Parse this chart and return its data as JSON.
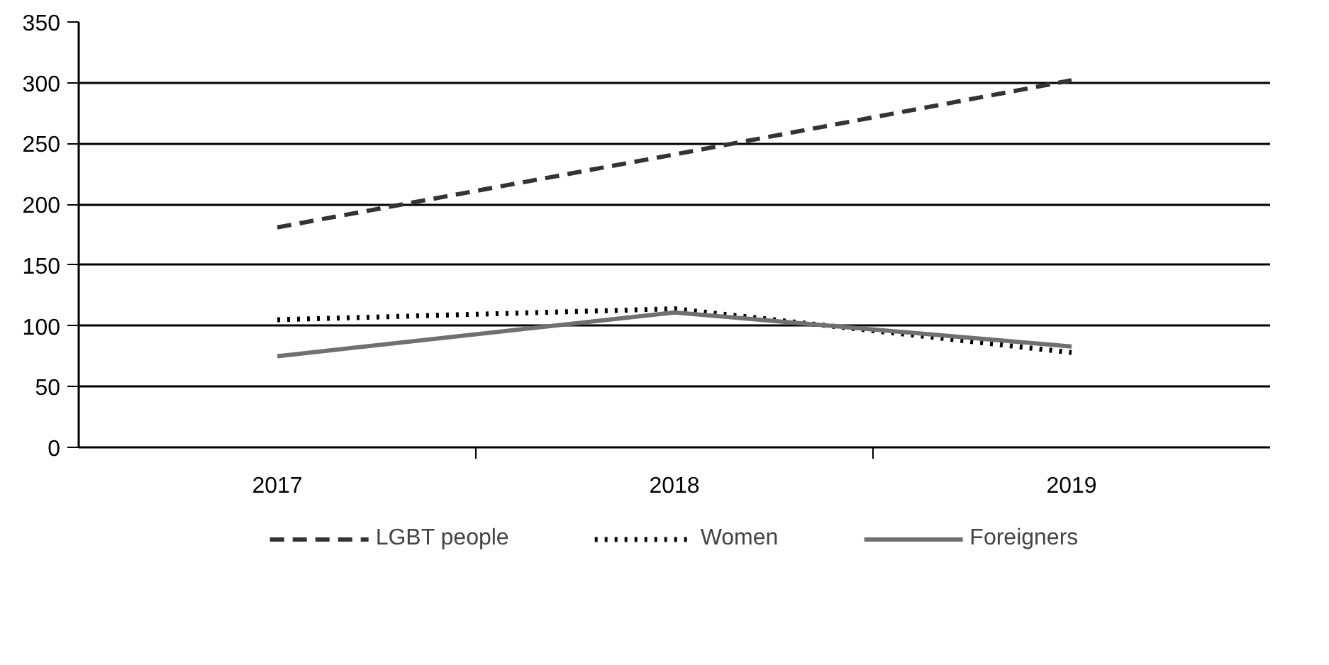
{
  "chart_data": {
    "type": "line",
    "categories": [
      "2017",
      "2018",
      "2019"
    ],
    "series": [
      {
        "name": "LGBT people",
        "color": "#333333",
        "line_style": "dashed",
        "values": [
          181,
          241,
          302
        ]
      },
      {
        "name": "Women",
        "color": "#000000",
        "line_style": "dotted",
        "values": [
          105,
          114,
          78
        ]
      },
      {
        "name": "Foreigners",
        "color": "#707070",
        "line_style": "solid",
        "values": [
          75,
          111,
          83
        ]
      }
    ],
    "ylim": [
      0,
      350
    ],
    "yticks": [
      0,
      50,
      100,
      150,
      200,
      250,
      300,
      350
    ],
    "grid": "y",
    "legend": "bottom",
    "marker": "none"
  }
}
